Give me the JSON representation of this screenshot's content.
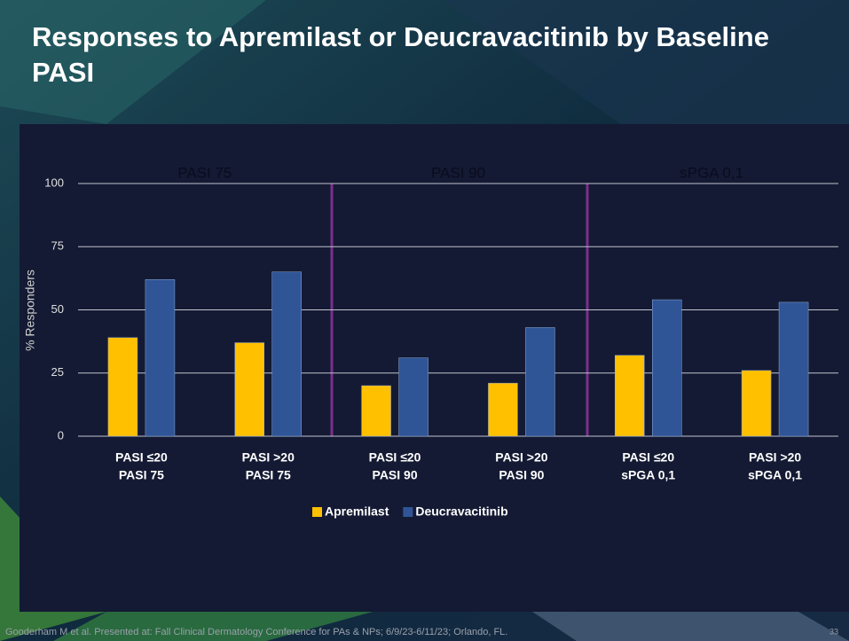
{
  "chart_data": {
    "type": "bar",
    "title": "Responses to Apremilast or Deucravacitinib by Baseline PASI",
    "y_label": "% Responders",
    "annotations": [
      "PASI 75",
      "PASI 90",
      "sPGA 0,1"
    ],
    "categories": [
      [
        "PASI ≤20",
        "PASI 75"
      ],
      [
        "PASI >20",
        "PASI 75"
      ],
      [
        "PASI ≤20",
        "PASI 90"
      ],
      [
        "PASI >20",
        "PASI 90"
      ],
      [
        "PASI ≤20",
        "sPGA 0,1"
      ],
      [
        "PASI >20",
        "sPGA 0,1"
      ]
    ],
    "series": [
      {
        "name": "Apremilast",
        "color": "#FFC000",
        "values": [
          39,
          37,
          20,
          21,
          32,
          26
        ]
      },
      {
        "name": "Deucravacitinib",
        "color": "#2F5597",
        "values": [
          62,
          65,
          31,
          43,
          54,
          53
        ]
      }
    ],
    "ylim": [
      0,
      100
    ],
    "yticks": [
      0,
      25,
      50,
      75,
      100
    ],
    "grid": true,
    "legend": "bottom",
    "footer": "Gooderham M et al. Presented at: Fall Clinical Dermatology Conference for PAs & NPs; 6/9/23-6/11/23; Orlando, FL.",
    "page_number": "33"
  }
}
